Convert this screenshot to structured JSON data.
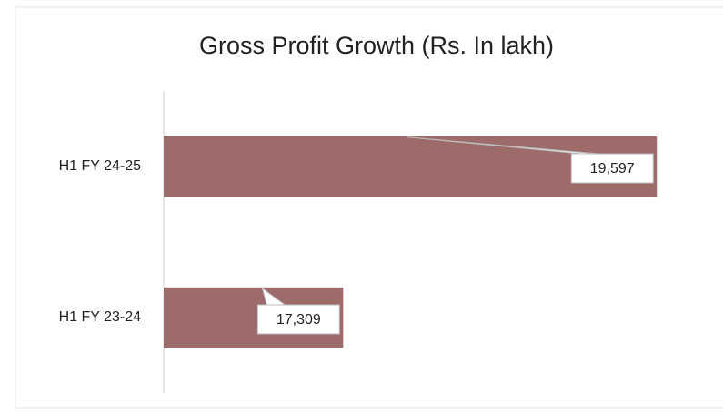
{
  "chart_data": {
    "type": "bar",
    "orientation": "horizontal",
    "title": "Gross Profit Growth (Rs. In lakh)",
    "categories": [
      "H1 FY 24-25",
      "H1 FY 23-24"
    ],
    "values": [
      19597,
      17309
    ],
    "value_labels": [
      "19,597",
      "17,309"
    ],
    "color": "#9e6b6b",
    "xlim": [
      16000,
      20000
    ]
  }
}
